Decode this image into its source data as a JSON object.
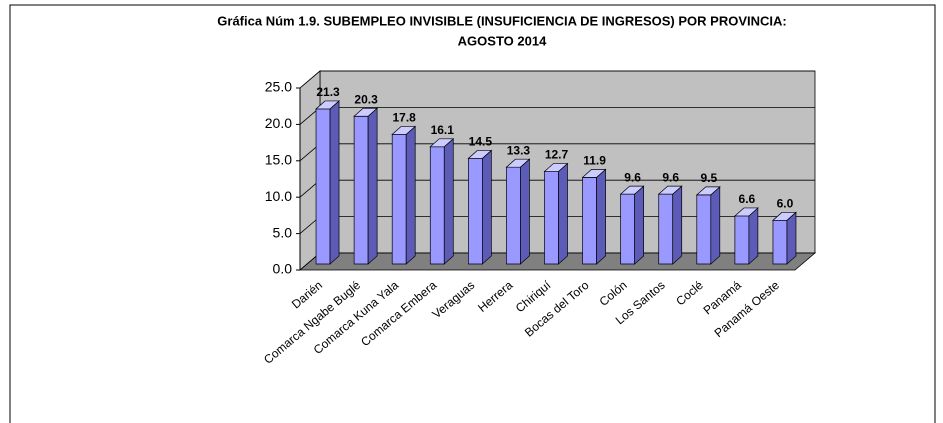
{
  "chart_data": {
    "type": "bar3d",
    "title": [
      "Gráfica Núm 1.9. SUBEMPLEO INVISIBLE (INSUFICIENCIA DE INGRESOS) POR PROVINCIA:",
      "AGOSTO 2014"
    ],
    "categories": [
      "Darién",
      "Comarca Ngabe Buglé",
      "Comarca Kuna Yala",
      "Comarca Embera",
      "Veraguas",
      "Herrera",
      "Chiriquí",
      "Bocas del Toro",
      "Colón",
      "Los Santos",
      "Coclé",
      "Panamá",
      "Panamá Oeste"
    ],
    "values": [
      21.3,
      20.3,
      17.8,
      16.1,
      14.5,
      13.3,
      12.7,
      11.9,
      9.6,
      9.6,
      9.5,
      6.6,
      6.0
    ],
    "value_labels": [
      "21.3",
      "20.3",
      "17.8",
      "16.1",
      "14.5",
      "13.3",
      "12.7",
      "11.9",
      "9.6",
      "9.6",
      "9.5",
      "6.6",
      "6.0"
    ],
    "color": "#9999ff",
    "ylim": [
      0,
      25
    ],
    "yticks": [
      {
        "value": 0,
        "label": "0.0"
      },
      {
        "value": 5,
        "label": "5.0"
      },
      {
        "value": 10,
        "label": "10.0"
      },
      {
        "value": 15,
        "label": "15.0"
      },
      {
        "value": 20,
        "label": "20.0"
      },
      {
        "value": 25,
        "label": "25.0"
      }
    ],
    "grid": true
  }
}
